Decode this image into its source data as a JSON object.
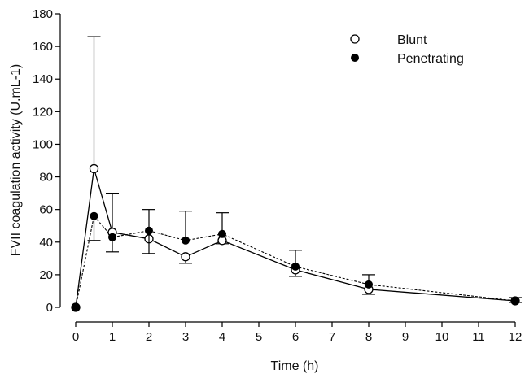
{
  "chart_data": {
    "type": "line",
    "title": "",
    "xlabel": "Time (h)",
    "ylabel": "FVII coagulation activity (U.mL-1)",
    "xlim": [
      0,
      12
    ],
    "ylim": [
      0,
      180
    ],
    "xticks": [
      0,
      1,
      2,
      3,
      4,
      5,
      6,
      7,
      8,
      9,
      10,
      11,
      12
    ],
    "yticks": [
      0,
      20,
      40,
      60,
      80,
      100,
      120,
      140,
      160,
      180
    ],
    "grid": false,
    "legend_position": "top-right",
    "series": [
      {
        "name": "Blunt",
        "marker": "open-circle",
        "line_style": "solid",
        "color": "#000000",
        "x": [
          0,
          0.5,
          1,
          2,
          3,
          4,
          6,
          8,
          12
        ],
        "y": [
          0,
          85,
          46,
          42,
          31,
          41,
          23,
          11,
          4
        ],
        "error_upper": [
          0,
          166,
          70,
          0,
          0,
          0,
          0,
          0,
          0
        ],
        "error_lower": [
          0,
          0,
          0,
          0,
          27,
          39,
          19,
          8,
          3
        ]
      },
      {
        "name": "Penetrating",
        "marker": "filled-circle",
        "line_style": "dashed",
        "color": "#000000",
        "x": [
          0,
          0.5,
          1,
          2,
          3,
          4,
          6,
          8,
          12
        ],
        "y": [
          0,
          56,
          43,
          47,
          41,
          45,
          25,
          14,
          4
        ],
        "error_upper": [
          0,
          0,
          0,
          60,
          59,
          58,
          35,
          20,
          6
        ],
        "error_lower": [
          0,
          41,
          34,
          33,
          0,
          0,
          0,
          0,
          0
        ]
      }
    ]
  }
}
